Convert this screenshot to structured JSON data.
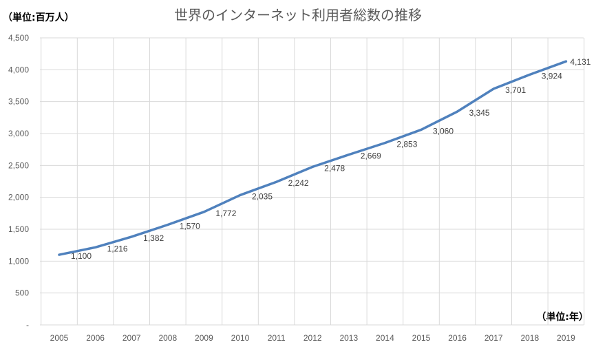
{
  "chart_data": {
    "type": "line",
    "title": "世界のインターネット利用者総数の推移",
    "y_unit_label": "（単位:百万人）",
    "x_unit_label": "（単位:年）",
    "categories": [
      "2005",
      "2006",
      "2007",
      "2008",
      "2009",
      "2010",
      "2011",
      "2012",
      "2013",
      "2014",
      "2015",
      "2016",
      "2017",
      "2018",
      "2019"
    ],
    "series": [
      {
        "name": "インターネット利用者総数",
        "values": [
          1100,
          1216,
          1382,
          1570,
          1772,
          2035,
          2242,
          2478,
          2669,
          2853,
          3060,
          3345,
          3701,
          3924,
          4131
        ],
        "labels": [
          "1,100",
          "1,216",
          "1,382",
          "1,570",
          "1,772",
          "2,035",
          "2,242",
          "2,478",
          "2,669",
          "2,853",
          "3,060",
          "3,345",
          "3,701",
          "3,924",
          "4,131"
        ],
        "color": "#4f81bd"
      }
    ],
    "y_ticks": [
      0,
      500,
      1000,
      1500,
      2000,
      2500,
      3000,
      3500,
      4000,
      4500
    ],
    "y_tick_labels": [
      "-",
      "500",
      "1,000",
      "1,500",
      "2,000",
      "2,500",
      "3,000",
      "3,500",
      "4,000",
      "4,500"
    ],
    "ylim": [
      0,
      4500
    ],
    "grid": true,
    "gridline_color": "#d9d9d9"
  }
}
